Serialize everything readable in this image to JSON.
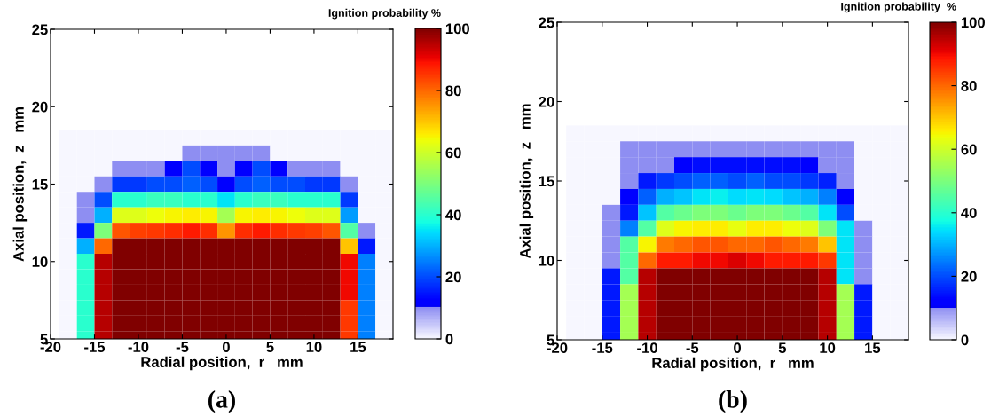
{
  "chart_data": [
    {
      "type": "heatmap",
      "title": "(a)",
      "xlabel": "Radial position,  r   mm",
      "ylabel": "Axial position,  z   mm",
      "clabel": "Ignition probability %",
      "x": [
        -18,
        -16,
        -14,
        -12,
        -10,
        -8,
        -6,
        -4,
        -2,
        0,
        2,
        4,
        6,
        8,
        10,
        12,
        14,
        16,
        18
      ],
      "y": [
        18,
        17,
        16,
        15,
        14,
        13,
        12,
        11,
        10,
        9,
        8,
        7,
        6,
        5
      ],
      "cells": [
        [
          0,
          0,
          0,
          0,
          0,
          0,
          0,
          0,
          0,
          0,
          0,
          0,
          0,
          0,
          0,
          0,
          0,
          0,
          0
        ],
        [
          0,
          0,
          0,
          0,
          0,
          0,
          0,
          10,
          10,
          10,
          10,
          10,
          0,
          0,
          0,
          0,
          0,
          0,
          0
        ],
        [
          0,
          0,
          0,
          10,
          10,
          10,
          12,
          20,
          12,
          10,
          12,
          20,
          12,
          10,
          10,
          10,
          0,
          0,
          0
        ],
        [
          0,
          0,
          10,
          18,
          18,
          20,
          20,
          22,
          20,
          12,
          20,
          22,
          20,
          20,
          18,
          18,
          10,
          0,
          0
        ],
        [
          0,
          10,
          20,
          40,
          40,
          42,
          42,
          40,
          40,
          35,
          40,
          42,
          42,
          40,
          40,
          40,
          18,
          0,
          0
        ],
        [
          0,
          10,
          30,
          62,
          62,
          64,
          65,
          66,
          65,
          55,
          65,
          66,
          65,
          64,
          62,
          62,
          28,
          0,
          0
        ],
        [
          0,
          15,
          50,
          82,
          84,
          85,
          86,
          88,
          86,
          75,
          86,
          88,
          86,
          85,
          84,
          82,
          45,
          10,
          0
        ],
        [
          0,
          30,
          80,
          100,
          100,
          100,
          100,
          100,
          100,
          100,
          100,
          100,
          100,
          100,
          100,
          100,
          70,
          15,
          0
        ],
        [
          0,
          40,
          95,
          100,
          100,
          100,
          100,
          100,
          100,
          100,
          100,
          100,
          100,
          100,
          100,
          100,
          90,
          25,
          0
        ],
        [
          0,
          40,
          95,
          100,
          100,
          100,
          100,
          100,
          100,
          100,
          100,
          100,
          100,
          100,
          100,
          100,
          90,
          25,
          0
        ],
        [
          0,
          40,
          95,
          100,
          100,
          100,
          100,
          100,
          100,
          100,
          100,
          100,
          100,
          100,
          100,
          100,
          90,
          25,
          0
        ],
        [
          0,
          40,
          95,
          100,
          100,
          100,
          100,
          100,
          100,
          100,
          100,
          100,
          100,
          100,
          100,
          100,
          85,
          25,
          0
        ],
        [
          0,
          40,
          95,
          100,
          100,
          100,
          100,
          100,
          100,
          100,
          100,
          100,
          100,
          100,
          100,
          100,
          85,
          25,
          0
        ],
        [
          0,
          40,
          95,
          100,
          100,
          100,
          100,
          100,
          100,
          100,
          100,
          100,
          100,
          100,
          100,
          100,
          85,
          25,
          0
        ]
      ],
      "xlim": [
        -20,
        19
      ],
      "xticks": [
        -20,
        -15,
        -10,
        -5,
        0,
        5,
        10,
        15
      ],
      "ylim": [
        5,
        25
      ],
      "yticks": [
        5,
        10,
        15,
        20,
        25
      ],
      "clim": [
        0,
        100
      ],
      "cticks": [
        0,
        20,
        40,
        60,
        80,
        100
      ]
    },
    {
      "type": "heatmap",
      "title": "(b)",
      "xlabel": "Radial position,  r   mm",
      "ylabel": "Axial position,  z   mm",
      "clabel": "Ignition probability  %",
      "x": [
        -18,
        -16,
        -14,
        -12,
        -10,
        -8,
        -6,
        -4,
        -2,
        0,
        2,
        4,
        6,
        8,
        10,
        12,
        14,
        16,
        18
      ],
      "y": [
        18,
        17,
        16,
        15,
        14,
        13,
        12,
        11,
        10,
        9,
        8,
        7,
        6,
        5
      ],
      "cells": [
        [
          0,
          0,
          0,
          0,
          0,
          0,
          0,
          0,
          0,
          0,
          0,
          0,
          0,
          0,
          0,
          0,
          0,
          0,
          0
        ],
        [
          0,
          0,
          0,
          10,
          10,
          10,
          10,
          10,
          10,
          10,
          10,
          10,
          10,
          10,
          10,
          10,
          0,
          0,
          0
        ],
        [
          0,
          0,
          0,
          10,
          10,
          10,
          12,
          14,
          14,
          14,
          14,
          14,
          14,
          12,
          10,
          10,
          0,
          0,
          0
        ],
        [
          0,
          0,
          0,
          10,
          15,
          18,
          20,
          22,
          22,
          20,
          22,
          20,
          20,
          18,
          16,
          10,
          0,
          0,
          0
        ],
        [
          0,
          0,
          0,
          12,
          22,
          30,
          32,
          35,
          36,
          34,
          35,
          34,
          32,
          30,
          25,
          12,
          0,
          0,
          0
        ],
        [
          0,
          0,
          10,
          15,
          32,
          45,
          48,
          50,
          50,
          48,
          50,
          50,
          48,
          45,
          35,
          20,
          0,
          0,
          0
        ],
        [
          0,
          0,
          10,
          25,
          45,
          62,
          65,
          66,
          66,
          63,
          66,
          66,
          64,
          62,
          50,
          35,
          10,
          0,
          0
        ],
        [
          0,
          0,
          10,
          45,
          65,
          78,
          80,
          82,
          82,
          80,
          80,
          82,
          80,
          78,
          70,
          35,
          10,
          0,
          0
        ],
        [
          0,
          0,
          10,
          45,
          80,
          88,
          88,
          90,
          90,
          92,
          90,
          88,
          88,
          88,
          85,
          35,
          10,
          0,
          0
        ],
        [
          0,
          0,
          15,
          45,
          95,
          100,
          100,
          100,
          100,
          100,
          100,
          100,
          100,
          100,
          95,
          35,
          10,
          0,
          0
        ],
        [
          0,
          0,
          15,
          55,
          95,
          100,
          100,
          100,
          100,
          100,
          100,
          100,
          100,
          100,
          95,
          55,
          15,
          0,
          0
        ],
        [
          0,
          0,
          15,
          55,
          95,
          100,
          100,
          100,
          100,
          100,
          100,
          100,
          100,
          100,
          95,
          55,
          15,
          0,
          0
        ],
        [
          0,
          0,
          15,
          55,
          95,
          100,
          100,
          100,
          100,
          100,
          100,
          100,
          100,
          100,
          95,
          55,
          15,
          0,
          0
        ],
        [
          0,
          0,
          15,
          55,
          95,
          100,
          100,
          100,
          100,
          100,
          100,
          100,
          100,
          100,
          95,
          55,
          15,
          0,
          0
        ]
      ],
      "xlim": [
        -20,
        19
      ],
      "xticks": [
        -20,
        -15,
        -10,
        -5,
        0,
        5,
        10,
        15
      ],
      "ylim": [
        5,
        25
      ],
      "yticks": [
        5,
        10,
        15,
        20,
        25
      ],
      "clim": [
        0,
        100
      ],
      "cticks": [
        0,
        20,
        40,
        60,
        80,
        100
      ]
    }
  ]
}
